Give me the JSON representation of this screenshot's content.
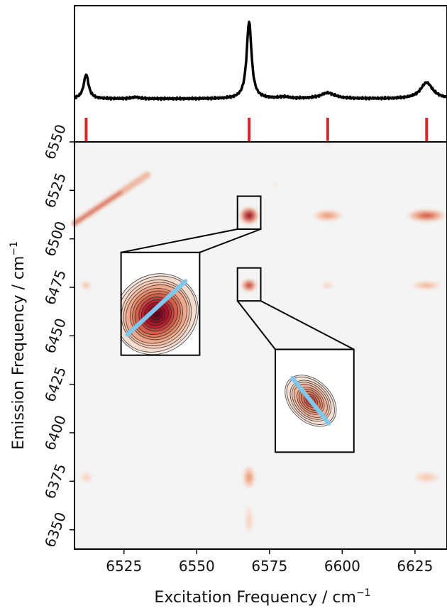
{
  "chart_data": {
    "type": "heatmap",
    "title": "",
    "xlabel": "Excitation Frequency / cm",
    "ylabel": "Emission Frequency / cm",
    "unit_exponent": "−1",
    "xlim": [
      6508,
      6636
    ],
    "ylim": [
      6340,
      6550
    ],
    "xticks": [
      6525,
      6550,
      6575,
      6600,
      6625
    ],
    "yticks": [
      6350,
      6375,
      6400,
      6425,
      6450,
      6475,
      6500,
      6525,
      6550
    ],
    "grid": false,
    "colormap": [
      "#f4f4f4",
      "#f6c9b1",
      "#e07a5a",
      "#b2182b",
      "#67001f"
    ],
    "fit_line_color": "#7ec8f0",
    "marker_color": "#d62728",
    "spectrum": {
      "x_range": [
        6508,
        6636
      ],
      "baseline": 0.05,
      "peaks": [
        {
          "x": 6512,
          "height": 0.3,
          "width": 1.0
        },
        {
          "x": 6529,
          "height": 0.02,
          "width": 1.5
        },
        {
          "x": 6568,
          "height": 0.95,
          "width": 1.0
        },
        {
          "x": 6580,
          "height": 0.02,
          "width": 2.0
        },
        {
          "x": 6595,
          "height": 0.07,
          "width": 3.0
        },
        {
          "x": 6629,
          "height": 0.2,
          "width": 2.5
        }
      ],
      "markers": [
        6512,
        6568,
        6595,
        6629
      ]
    },
    "features": [
      {
        "x": 6520,
        "y": 6520,
        "sx": 12,
        "sy": 12,
        "intensity": 0.7,
        "type": "diagonal"
      },
      {
        "x": 6568,
        "y": 6512,
        "sx": 2.2,
        "sy": 3.0,
        "intensity": 1.0
      },
      {
        "x": 6595,
        "y": 6512,
        "sx": 3.5,
        "sy": 2.0,
        "intensity": 0.5
      },
      {
        "x": 6629,
        "y": 6512,
        "sx": 4.5,
        "sy": 2.2,
        "intensity": 0.7
      },
      {
        "x": 6512,
        "y": 6476,
        "sx": 1.2,
        "sy": 1.5,
        "intensity": 0.35
      },
      {
        "x": 6568,
        "y": 6476,
        "sx": 1.8,
        "sy": 2.2,
        "intensity": 0.8
      },
      {
        "x": 6595,
        "y": 6476,
        "sx": 1.5,
        "sy": 1.2,
        "intensity": 0.25
      },
      {
        "x": 6629,
        "y": 6476,
        "sx": 3.5,
        "sy": 1.5,
        "intensity": 0.4
      },
      {
        "x": 6512,
        "y": 6377,
        "sx": 1.5,
        "sy": 2.0,
        "intensity": 0.25
      },
      {
        "x": 6568,
        "y": 6377,
        "sx": 1.5,
        "sy": 4.0,
        "intensity": 0.5
      },
      {
        "x": 6629,
        "y": 6377,
        "sx": 3.0,
        "sy": 2.0,
        "intensity": 0.3
      },
      {
        "x": 6568,
        "y": 6355,
        "sx": 1.0,
        "sy": 5.0,
        "intensity": 0.25
      },
      {
        "x": 6595,
        "y": 6549,
        "sx": 0.8,
        "sy": 1.0,
        "intensity": 0.15
      },
      {
        "x": 6577,
        "y": 6528,
        "sx": 0.8,
        "sy": 1.0,
        "intensity": 0.1
      }
    ],
    "zoom_boxes": [
      {
        "x0": 6564,
        "x1": 6572,
        "y0": 6505,
        "y1": 6522,
        "slope": 1
      },
      {
        "x0": 6564,
        "x1": 6572,
        "y0": 6468,
        "y1": 6485,
        "slope": -1
      }
    ],
    "insets": [
      {
        "source": 0,
        "x0": 6524,
        "x1": 6551,
        "y0": 6440,
        "y1": 6493
      },
      {
        "source": 1,
        "x0": 6577,
        "x1": 6604,
        "y0": 6390,
        "y1": 6443
      }
    ]
  }
}
